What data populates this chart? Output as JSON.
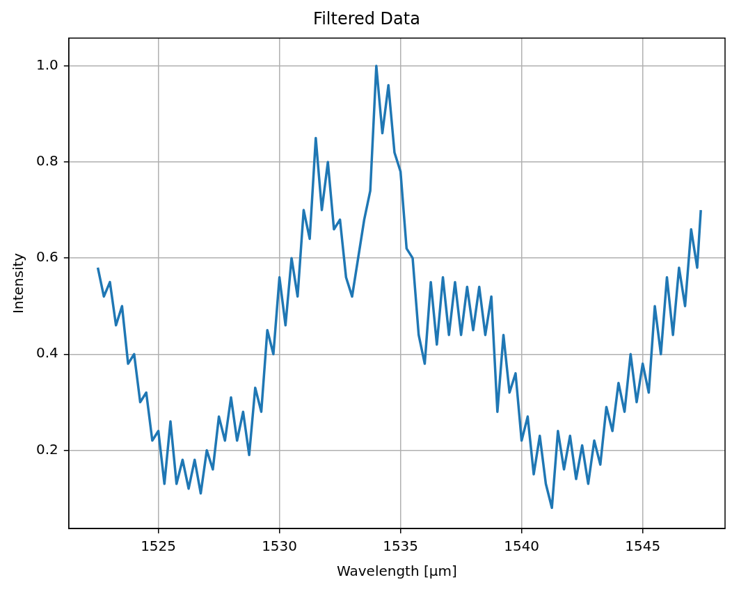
{
  "chart_data": {
    "type": "line",
    "title": "Filtered Data",
    "xlabel": "Wavelength [μm]",
    "ylabel": "Intensity",
    "x": [
      1522.5,
      1522.75,
      1523,
      1523.25,
      1523.5,
      1523.75,
      1524,
      1524.25,
      1524.5,
      1524.75,
      1525,
      1525.25,
      1525.5,
      1525.75,
      1526,
      1526.25,
      1526.5,
      1526.75,
      1527,
      1527.25,
      1527.5,
      1527.75,
      1528,
      1528.25,
      1528.5,
      1528.75,
      1529,
      1529.25,
      1529.5,
      1529.75,
      1530,
      1530.25,
      1530.5,
      1530.75,
      1531,
      1531.25,
      1531.5,
      1531.75,
      1532,
      1532.25,
      1532.5,
      1532.75,
      1533,
      1533.25,
      1533.5,
      1533.75,
      1534,
      1534.25,
      1534.5,
      1534.75,
      1535,
      1535.25,
      1535.5,
      1535.75,
      1536,
      1536.25,
      1536.5,
      1536.75,
      1537,
      1537.25,
      1537.5,
      1537.75,
      1538,
      1538.25,
      1538.5,
      1538.75,
      1539,
      1539.25,
      1539.5,
      1539.75,
      1540,
      1540.25,
      1540.5,
      1540.75,
      1541,
      1541.25,
      1541.5,
      1541.75,
      1542,
      1542.25,
      1542.5,
      1542.75,
      1543,
      1543.25,
      1543.5,
      1543.75,
      1544,
      1544.25,
      1544.5,
      1544.75,
      1545,
      1545.25,
      1545.5,
      1545.75,
      1546,
      1546.25,
      1546.5,
      1546.75,
      1547,
      1547.25,
      1547.4
    ],
    "series": [
      {
        "color": "#1f77b4",
        "values": [
          0.58,
          0.52,
          0.55,
          0.46,
          0.5,
          0.38,
          0.4,
          0.3,
          0.32,
          0.22,
          0.24,
          0.13,
          0.26,
          0.13,
          0.18,
          0.12,
          0.18,
          0.11,
          0.2,
          0.16,
          0.27,
          0.22,
          0.31,
          0.22,
          0.28,
          0.19,
          0.33,
          0.28,
          0.45,
          0.4,
          0.56,
          0.46,
          0.6,
          0.52,
          0.7,
          0.64,
          0.85,
          0.7,
          0.8,
          0.66,
          0.68,
          0.56,
          0.52,
          0.6,
          0.68,
          0.74,
          1.0,
          0.86,
          0.96,
          0.82,
          0.78,
          0.62,
          0.6,
          0.44,
          0.38,
          0.55,
          0.42,
          0.56,
          0.44,
          0.55,
          0.44,
          0.54,
          0.45,
          0.54,
          0.44,
          0.52,
          0.28,
          0.44,
          0.32,
          0.36,
          0.22,
          0.27,
          0.15,
          0.23,
          0.13,
          0.08,
          0.24,
          0.16,
          0.23,
          0.14,
          0.21,
          0.13,
          0.22,
          0.17,
          0.29,
          0.24,
          0.34,
          0.28,
          0.4,
          0.3,
          0.38,
          0.32,
          0.5,
          0.4,
          0.56,
          0.44,
          0.58,
          0.5,
          0.66,
          0.58,
          0.7
        ]
      }
    ],
    "xlim": [
      1521.3,
      1548.4
    ],
    "ylim": [
      0.037,
      1.058
    ],
    "xticks": [
      1525,
      1530,
      1535,
      1540,
      1545
    ],
    "yticks": [
      0.2,
      0.4,
      0.6,
      0.8,
      {
        "value": 1,
        "label": "1.0"
      }
    ],
    "grid": true,
    "marker": "none",
    "line_style": "solid"
  }
}
